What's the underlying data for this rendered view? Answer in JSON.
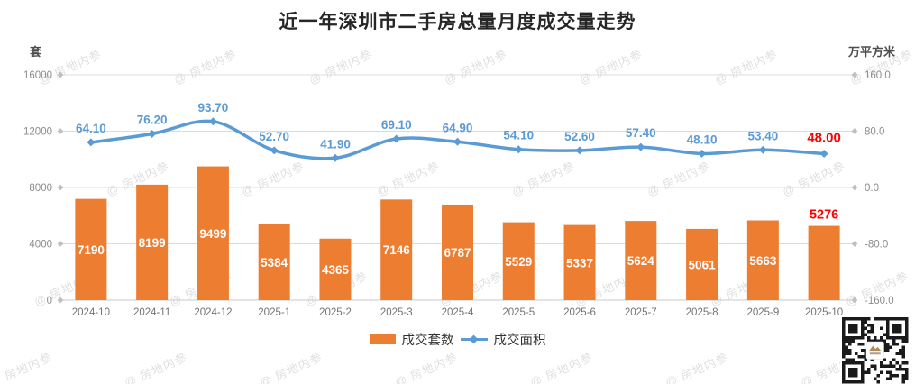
{
  "title": "近一年深圳市二手房总量月度成交量走势",
  "left_axis_unit": "套",
  "right_axis_unit": "万平方米",
  "legend": {
    "bars": "成交套数",
    "line": "成交面积"
  },
  "watermark_text": "@ 房地内参",
  "colors": {
    "bar": "#ED7D31",
    "line": "#5B9BD5",
    "highlight": "#FF0000",
    "bar_label": "#FFFFFF",
    "axis_text": "#8c8c8c",
    "category_text": "#737373",
    "grid": "#dcdcdc",
    "grid_baseline": "#c9c9c9",
    "tick_diamond": "#c0c0c0",
    "legend_text": "#333333",
    "title_text": "#262626"
  },
  "chart_data": {
    "type": "bar+line",
    "title": "近一年深圳市二手房总量月度成交量走势",
    "categories": [
      "2024-10",
      "2024-11",
      "2024-12",
      "2025-1",
      "2025-2",
      "2025-3",
      "2025-4",
      "2025-5",
      "2025-6",
      "2025-7",
      "2025-8",
      "2025-9",
      "2025-10"
    ],
    "series": [
      {
        "name": "成交套数",
        "type": "bar",
        "axis": "left",
        "values": [
          7190,
          8199,
          9499,
          5384,
          4365,
          7146,
          6787,
          5529,
          5337,
          5624,
          5061,
          5663,
          5276
        ],
        "labels": [
          "7190",
          "8199",
          "9499",
          "5384",
          "4365",
          "7146",
          "6787",
          "5529",
          "5337",
          "5624",
          "5061",
          "5663",
          "5276"
        ]
      },
      {
        "name": "成交面积",
        "type": "line",
        "axis": "right",
        "values": [
          64.1,
          76.2,
          93.7,
          52.7,
          41.9,
          69.1,
          64.9,
          54.1,
          52.6,
          57.4,
          48.1,
          53.4,
          48.0
        ],
        "labels": [
          "64.10",
          "76.20",
          "93.70",
          "52.70",
          "41.90",
          "69.10",
          "64.90",
          "54.10",
          "52.60",
          "57.40",
          "48.10",
          "53.40",
          "48.00"
        ]
      }
    ],
    "left_axis": {
      "unit": "套",
      "min": 0,
      "max": 16000,
      "ticks": [
        "16000",
        "12000",
        "8000",
        "4000",
        "0"
      ],
      "tick_values": [
        16000,
        12000,
        8000,
        4000,
        0
      ]
    },
    "right_axis": {
      "unit": "万平方米",
      "min": -160,
      "max": 160,
      "ticks": [
        "160.0",
        "80.0",
        "0.0",
        "-80.0",
        "-160.0"
      ],
      "tick_values": [
        160,
        80,
        0,
        -80,
        -160
      ]
    },
    "highlight_last_point": true,
    "grid": true,
    "legend_position": "bottom-center"
  },
  "qr_code": {
    "present": true
  }
}
